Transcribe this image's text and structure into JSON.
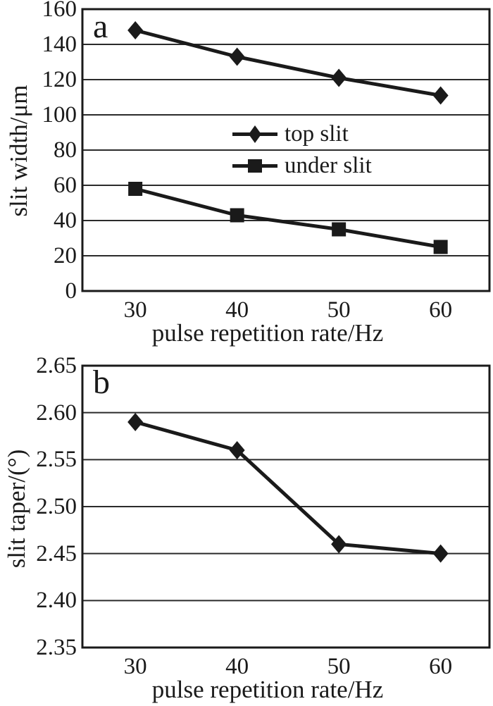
{
  "figure": {
    "background": "#ffffff",
    "ink_color": "#1a1a1a"
  },
  "chart_data": [
    {
      "type": "line",
      "panel_label": "a",
      "xlabel": "pulse repetition rate/Hz",
      "ylabel": "slit width/μm",
      "x": [
        30,
        40,
        50,
        60
      ],
      "x_tick_labels": [
        "30",
        "40",
        "50",
        "60"
      ],
      "ylim": [
        0,
        160
      ],
      "ytick_values": [
        0,
        20,
        40,
        60,
        80,
        100,
        120,
        140,
        160
      ],
      "ytick_labels": [
        "0",
        "20",
        "40",
        "60",
        "80",
        "100",
        "120",
        "140",
        "160"
      ],
      "grid": "horizontal",
      "legend_position": "inside upper-middle",
      "series": [
        {
          "name": "top slit",
          "marker": "diamond",
          "values": [
            148,
            133,
            121,
            111
          ]
        },
        {
          "name": "under slit",
          "marker": "square",
          "values": [
            58,
            43,
            35,
            25
          ]
        }
      ]
    },
    {
      "type": "line",
      "panel_label": "b",
      "xlabel": "pulse repetition rate/Hz",
      "ylabel": "slit taper/(°)",
      "x": [
        30,
        40,
        50,
        60
      ],
      "x_tick_labels": [
        "30",
        "40",
        "50",
        "60"
      ],
      "ylim": [
        2.35,
        2.65
      ],
      "ytick_values": [
        2.35,
        2.4,
        2.45,
        2.5,
        2.55,
        2.6,
        2.65
      ],
      "ytick_labels": [
        "2.35",
        "2.40",
        "2.45",
        "2.50",
        "2.55",
        "2.60",
        "2.65"
      ],
      "grid": "horizontal",
      "legend_position": "none",
      "series": [
        {
          "name": "",
          "marker": "diamond",
          "values": [
            2.59,
            2.56,
            2.46,
            2.45
          ]
        }
      ]
    }
  ]
}
